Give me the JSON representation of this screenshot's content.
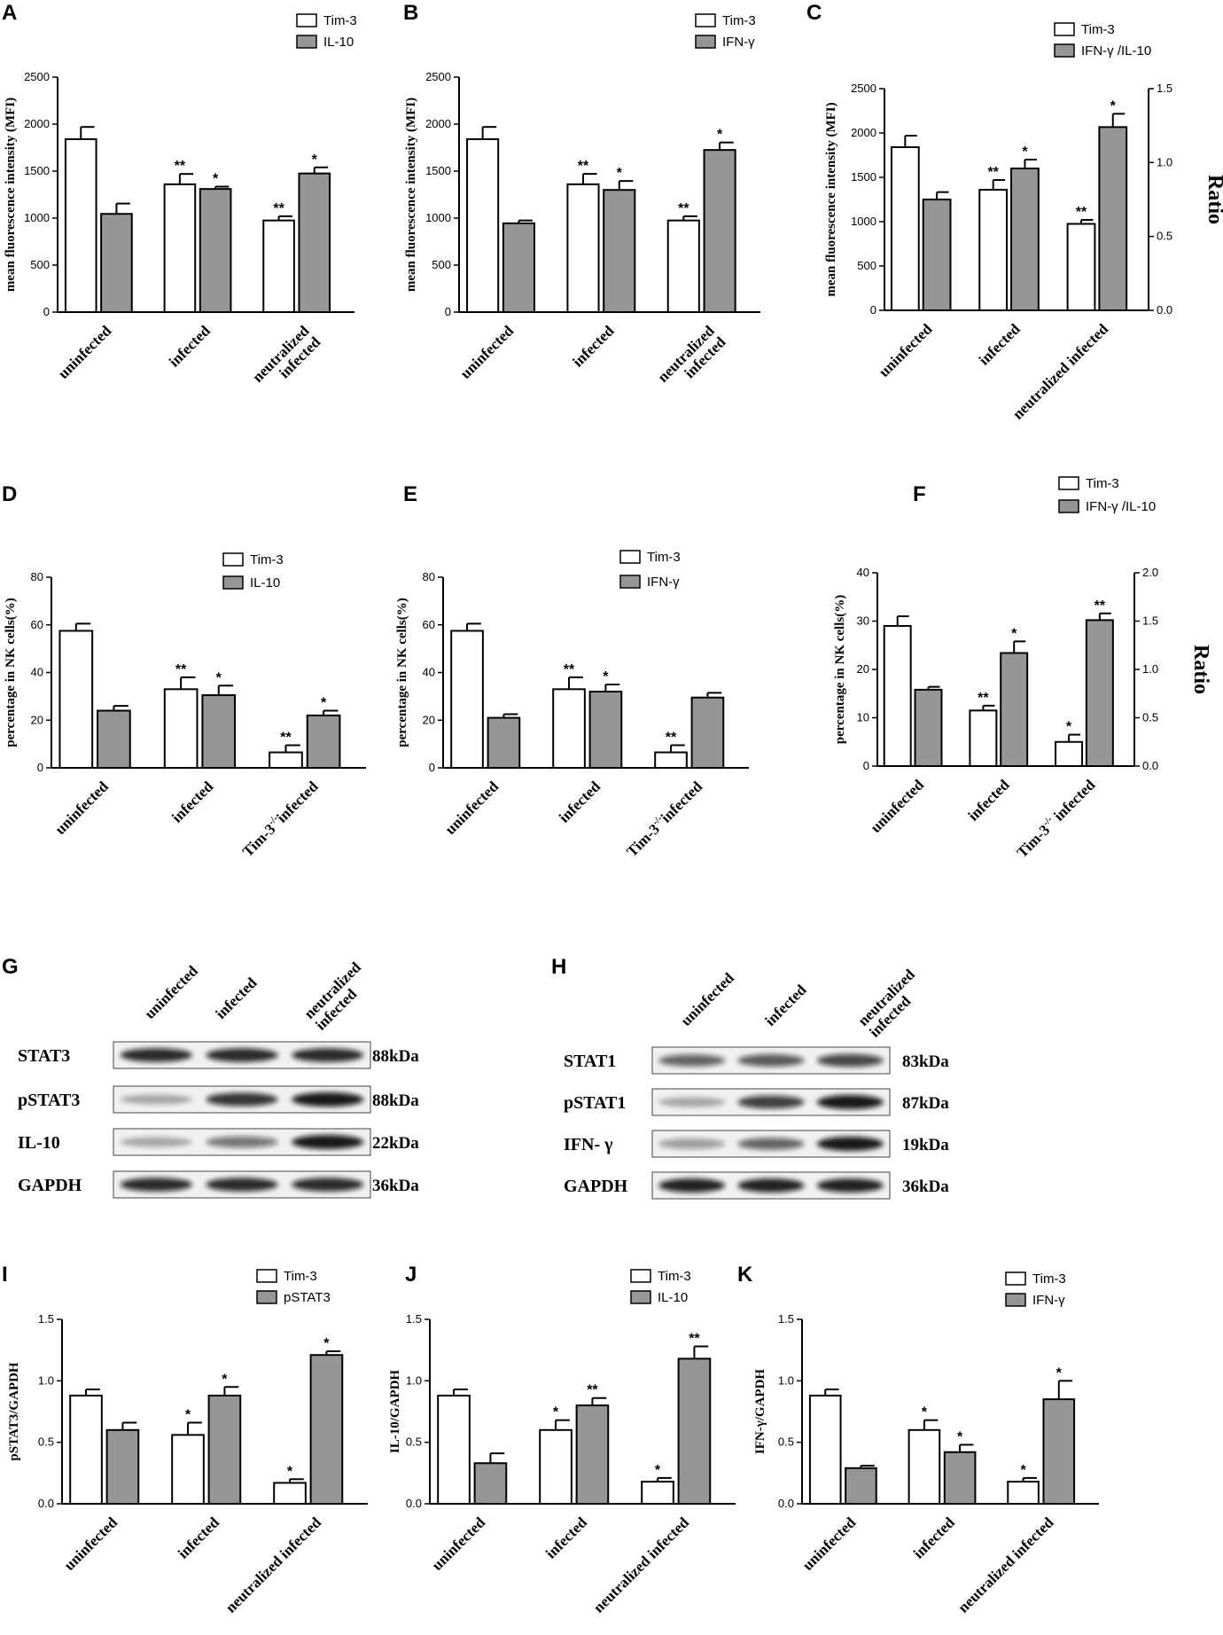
{
  "colors": {
    "white_bar": "#ffffff",
    "gray_bar": "#969696",
    "axis": "#000000"
  },
  "chart_data": [
    {
      "panel": "A",
      "type": "bar",
      "categories": [
        "uninfected",
        "infected",
        "neutralized\ninfected"
      ],
      "series": [
        {
          "name": "Tim-3",
          "values": [
            1840,
            1360,
            975
          ],
          "errors": [
            130,
            110,
            45
          ],
          "sig": [
            "",
            "**",
            "**"
          ]
        },
        {
          "name": "IL-10",
          "values": [
            1045,
            1310,
            1475
          ],
          "errors": [
            110,
            25,
            65
          ],
          "sig": [
            "",
            "*",
            "*"
          ]
        }
      ],
      "ylabel": "mean fluorescence intensity (MFI)",
      "ylim": [
        0,
        2500
      ],
      "yticks": [
        0,
        500,
        1000,
        1500,
        2000,
        2500
      ]
    },
    {
      "panel": "B",
      "type": "bar",
      "categories": [
        "uninfected",
        "infected",
        "neutralized\ninfected"
      ],
      "series": [
        {
          "name": "Tim-3",
          "values": [
            1840,
            1360,
            975
          ],
          "errors": [
            130,
            110,
            45
          ],
          "sig": [
            "",
            "**",
            "**"
          ]
        },
        {
          "name": "IFN-γ",
          "values": [
            945,
            1300,
            1725
          ],
          "errors": [
            30,
            95,
            80
          ],
          "sig": [
            "",
            "*",
            "*"
          ]
        }
      ],
      "ylabel": "mean fluorescence intensity (MFI)",
      "ylim": [
        0,
        2500
      ],
      "yticks": [
        0,
        500,
        1000,
        1500,
        2000,
        2500
      ]
    },
    {
      "panel": "C",
      "type": "bar",
      "categories": [
        "uninfected",
        "infected",
        "neutralized infected"
      ],
      "series": [
        {
          "name": "Tim-3",
          "values": [
            1840,
            1360,
            975
          ],
          "errors": [
            130,
            110,
            45
          ],
          "sig": [
            "",
            "**",
            "**"
          ],
          "axis": "left"
        },
        {
          "name": "IFN-γ /IL-10",
          "values": [
            0.75,
            0.96,
            1.24
          ],
          "errors": [
            0.05,
            0.06,
            0.09
          ],
          "sig": [
            "",
            "*",
            "*"
          ],
          "axis": "right"
        }
      ],
      "ylabel": "mean fluorescence intensity (MFI)",
      "ylim": [
        0,
        2500
      ],
      "yticks": [
        0,
        500,
        1000,
        1500,
        2000,
        2500
      ],
      "y2label": "Ratio",
      "y2lim": [
        0,
        1.5
      ],
      "y2ticks": [
        "0.0",
        "0.5",
        "1.0",
        "1.5"
      ]
    },
    {
      "panel": "D",
      "type": "bar",
      "categories": [
        "uninfected",
        "infected",
        "Tim-3-/-infected"
      ],
      "series": [
        {
          "name": "Tim-3",
          "values": [
            57.5,
            33,
            6.5
          ],
          "errors": [
            3,
            5,
            3
          ],
          "sig": [
            "",
            "**",
            "**"
          ]
        },
        {
          "name": "IL-10",
          "values": [
            24,
            30.5,
            22
          ],
          "errors": [
            2,
            4,
            2
          ],
          "sig": [
            "",
            "*",
            "*"
          ]
        }
      ],
      "ylabel": "percentage in NK cells(%)",
      "ylim": [
        0,
        80
      ],
      "yticks": [
        0,
        20,
        40,
        60,
        80
      ]
    },
    {
      "panel": "E",
      "type": "bar",
      "categories": [
        "uninfected",
        "infected",
        "Tim-3-/-infected"
      ],
      "series": [
        {
          "name": "Tim-3",
          "values": [
            57.5,
            33,
            6.5
          ],
          "errors": [
            3,
            5,
            3
          ],
          "sig": [
            "",
            "**",
            "**"
          ]
        },
        {
          "name": "IFN-γ",
          "values": [
            21,
            32,
            29.5
          ],
          "errors": [
            1.5,
            3,
            2
          ],
          "sig": [
            "",
            "*",
            ""
          ]
        }
      ],
      "ylabel": "percentage in NK cells(%)",
      "ylim": [
        0,
        80
      ],
      "yticks": [
        0,
        20,
        40,
        60,
        80
      ]
    },
    {
      "panel": "F",
      "type": "bar",
      "categories": [
        "uninfected",
        "infected",
        "Tim-3-/- infected"
      ],
      "series": [
        {
          "name": "Tim-3",
          "values": [
            29,
            11.5,
            5
          ],
          "errors": [
            2,
            1,
            1.5
          ],
          "sig": [
            "",
            "**",
            "*"
          ],
          "axis": "left"
        },
        {
          "name": "IFN-γ /IL-10",
          "values": [
            0.79,
            1.17,
            1.51
          ],
          "errors": [
            0.03,
            0.12,
            0.07
          ],
          "sig": [
            "",
            "*",
            "**"
          ],
          "axis": "right"
        }
      ],
      "ylabel": "percentage in NK cells(%)",
      "ylim": [
        0,
        40
      ],
      "yticks": [
        0,
        10,
        20,
        30,
        40
      ],
      "y2label": "Ratio",
      "y2lim": [
        0,
        2
      ],
      "y2ticks": [
        "0.0",
        "0.5",
        "1.0",
        "1.5",
        "2.0"
      ]
    },
    {
      "panel": "I",
      "type": "bar",
      "categories": [
        "uninfected",
        "infected",
        "neutralized infected"
      ],
      "series": [
        {
          "name": "Tim-3",
          "values": [
            0.88,
            0.56,
            0.17
          ],
          "errors": [
            0.05,
            0.1,
            0.03
          ],
          "sig": [
            "",
            "*",
            "*"
          ]
        },
        {
          "name": "pSTAT3",
          "values": [
            0.6,
            0.88,
            1.21
          ],
          "errors": [
            0.06,
            0.07,
            0.03
          ],
          "sig": [
            "",
            "*",
            "*"
          ]
        }
      ],
      "ylabel": "pSTAT3/GAPDH",
      "ylim": [
        0,
        1.5
      ],
      "yticks": [
        "0.0",
        "0.5",
        "1.0",
        "1.5"
      ]
    },
    {
      "panel": "J",
      "type": "bar",
      "categories": [
        "uninfected",
        "infected",
        "neutralized infected"
      ],
      "series": [
        {
          "name": "Tim-3",
          "values": [
            0.88,
            0.6,
            0.18
          ],
          "errors": [
            0.05,
            0.08,
            0.03
          ],
          "sig": [
            "",
            "*",
            "*"
          ]
        },
        {
          "name": "IL-10",
          "values": [
            0.33,
            0.8,
            1.18
          ],
          "errors": [
            0.08,
            0.06,
            0.1
          ],
          "sig": [
            "",
            "**",
            "**"
          ]
        }
      ],
      "ylabel": "IL-10/GAPDH",
      "ylim": [
        0,
        1.5
      ],
      "yticks": [
        "0.0",
        "0.5",
        "1.0",
        "1.5"
      ]
    },
    {
      "panel": "K",
      "type": "bar",
      "categories": [
        "uninfected",
        "infected",
        "neutralized infected"
      ],
      "series": [
        {
          "name": "Tim-3",
          "values": [
            0.88,
            0.6,
            0.18
          ],
          "errors": [
            0.05,
            0.08,
            0.03
          ],
          "sig": [
            "",
            "*",
            "*"
          ]
        },
        {
          "name": "IFN-γ",
          "values": [
            0.29,
            0.42,
            0.85
          ],
          "errors": [
            0.02,
            0.06,
            0.15
          ],
          "sig": [
            "",
            "*",
            "*"
          ]
        }
      ],
      "ylabel": "IFN-γ/GAPDH",
      "ylim": [
        0,
        1.5
      ],
      "yticks": [
        "0.0",
        "0.5",
        "1.0",
        "1.5"
      ]
    }
  ],
  "western_blots": [
    {
      "panel": "G",
      "lanes": [
        "uninfected",
        "infected",
        "neutralized\ninfected"
      ],
      "rows": [
        {
          "protein": "STAT3",
          "kda": "88kDa",
          "intensity": [
            0.9,
            0.9,
            0.9
          ]
        },
        {
          "protein": "pSTAT3",
          "kda": "88kDa",
          "intensity": [
            0.2,
            0.85,
            1.0
          ]
        },
        {
          "protein": "IL-10",
          "kda": "22kDa",
          "intensity": [
            0.2,
            0.5,
            1.0
          ]
        },
        {
          "protein": "GAPDH",
          "kda": "36kDa",
          "intensity": [
            0.9,
            0.9,
            0.9
          ]
        }
      ]
    },
    {
      "panel": "H",
      "lanes": [
        "uninfected",
        "infected",
        "neutralized\ninfected"
      ],
      "rows": [
        {
          "protein": "STAT1",
          "kda": "83kDa",
          "intensity": [
            0.6,
            0.65,
            0.75
          ]
        },
        {
          "protein": "pSTAT1",
          "kda": "87kDa",
          "intensity": [
            0.2,
            0.8,
            1.0
          ]
        },
        {
          "protein": "IFN- γ",
          "kda": "19kDa",
          "intensity": [
            0.3,
            0.6,
            1.0
          ]
        },
        {
          "protein": "GAPDH",
          "kda": "36kDa",
          "intensity": [
            0.95,
            0.95,
            0.95
          ]
        }
      ]
    }
  ]
}
